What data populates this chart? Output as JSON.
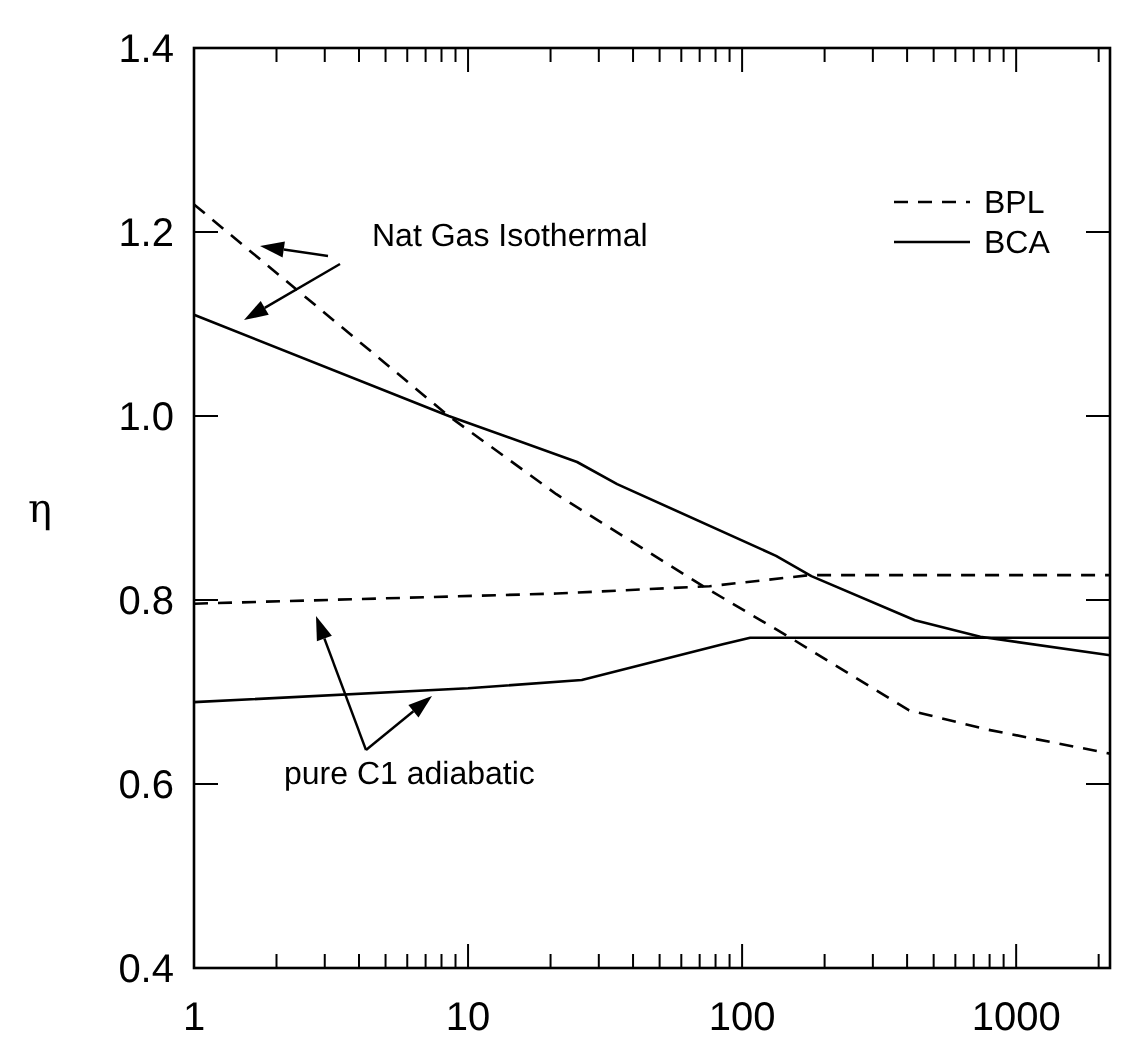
{
  "chart_data": {
    "type": "line",
    "ylabel": "η",
    "xlim": [
      1,
      2200
    ],
    "ylim": [
      0.4,
      1.4
    ],
    "log": "x",
    "xticks": [
      1,
      {
        "value": 2,
        "label": null
      },
      {
        "value": 3,
        "label": null
      },
      {
        "value": 4,
        "label": null
      },
      {
        "value": 5,
        "label": null
      },
      {
        "value": 6,
        "label": null
      },
      {
        "value": 7,
        "label": null
      },
      {
        "value": 8,
        "label": null
      },
      {
        "value": 9,
        "label": null
      },
      10,
      {
        "value": 20,
        "label": null
      },
      {
        "value": 30,
        "label": null
      },
      {
        "value": 40,
        "label": null
      },
      {
        "value": 50,
        "label": null
      },
      {
        "value": 60,
        "label": null
      },
      {
        "value": 70,
        "label": null
      },
      {
        "value": 80,
        "label": null
      },
      {
        "value": 90,
        "label": null
      },
      100,
      {
        "value": 200,
        "label": null
      },
      {
        "value": 300,
        "label": null
      },
      {
        "value": 400,
        "label": null
      },
      {
        "value": 500,
        "label": null
      },
      {
        "value": 600,
        "label": null
      },
      {
        "value": 700,
        "label": null
      },
      {
        "value": 800,
        "label": null
      },
      {
        "value": 900,
        "label": null
      },
      1000,
      {
        "value": 2000,
        "label": null
      }
    ],
    "yticks": [
      {
        "value": 0.4,
        "label": "0.4"
      },
      {
        "value": 0.6,
        "label": "0.6"
      },
      {
        "value": 0.8,
        "label": "0.8"
      },
      {
        "value": 1.0,
        "label": "1.0"
      },
      {
        "value": 1.2,
        "label": "1.2"
      },
      {
        "value": 1.4,
        "label": "1.4"
      }
    ],
    "grid": false,
    "legend": "top right",
    "annotations": [
      "Nat Gas Isothermal",
      "pure C1 adiabatic"
    ],
    "series": [
      {
        "name": "BPL",
        "color": "#000000",
        "line_style": "dashed",
        "x": [
          1,
          8.5,
          21,
          72,
          148,
          407,
          790,
          2200
        ],
        "values": [
          1.23,
          1.0,
          0.915,
          0.815,
          0.76,
          0.68,
          0.659,
          0.633
        ]
      },
      {
        "name": "BCA",
        "color": "#000000",
        "line_style": "solid",
        "x": [
          1,
          8.5,
          25,
          35,
          133,
          179,
          427,
          740,
          2200
        ],
        "values": [
          1.11,
          1.0,
          0.95,
          0.926,
          0.848,
          0.826,
          0.778,
          0.76,
          0.74
        ]
      },
      {
        "color": "#000000",
        "line_style": "dashed",
        "x": [
          1,
          21,
          76,
          176,
          2200
        ],
        "values": [
          0.796,
          0.807,
          0.815,
          0.827,
          0.827
        ]
      },
      {
        "color": "#000000",
        "line_style": "solid",
        "x": [
          1,
          10,
          26,
          85,
          107,
          2200
        ],
        "values": [
          0.689,
          0.704,
          0.713,
          0.752,
          0.759,
          0.759
        ]
      }
    ]
  }
}
